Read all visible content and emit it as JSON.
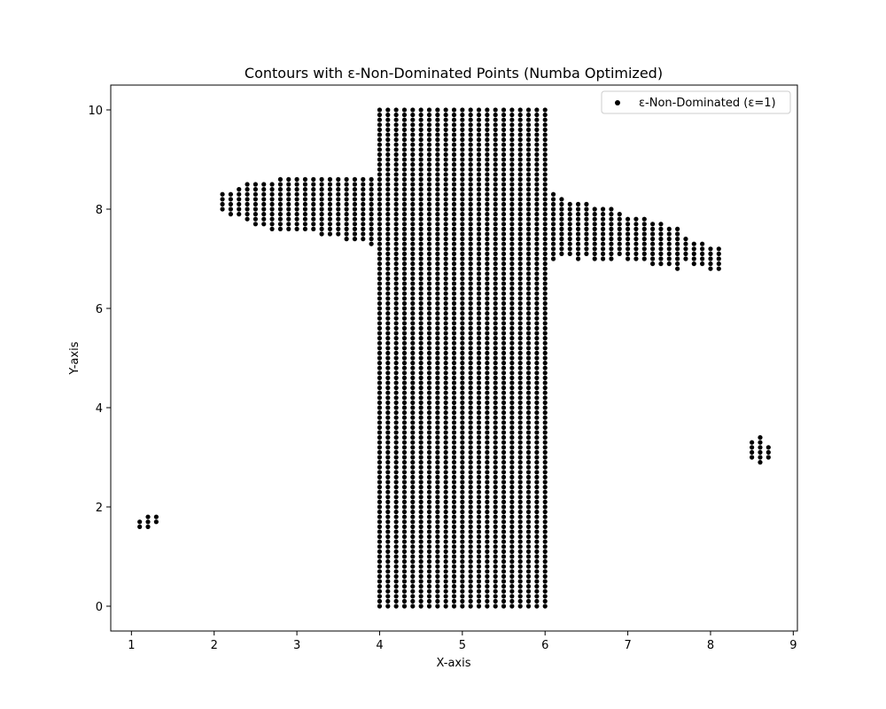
{
  "chart_data": {
    "type": "scatter",
    "title": "Contours with ε-Non-Dominated Points (Numba Optimized)",
    "xlabel": "X-axis",
    "ylabel": "Y-axis",
    "xlim": [
      0.75,
      9.05
    ],
    "ylim": [
      -0.5,
      10.5
    ],
    "xticks": [
      1,
      2,
      3,
      4,
      5,
      6,
      7,
      8,
      9
    ],
    "yticks": [
      0,
      2,
      4,
      6,
      8,
      10
    ],
    "grid": false,
    "legend_position": "upper right",
    "marker_color": "#000000",
    "series": [
      {
        "name": "ε-Non-Dominated (ε=1)",
        "regions": [
          {
            "part": "vertical-bar",
            "x_range": [
              4.0,
              6.0
            ],
            "x_step": 0.1,
            "y_range": [
              0.0,
              10.0
            ],
            "y_step": 0.1
          },
          {
            "part": "left-arm",
            "x_range": [
              2.1,
              3.9
            ],
            "x_step": 0.1,
            "y_step": 0.1,
            "columns": [
              [
                2.1,
                8.0,
                8.3
              ],
              [
                2.2,
                7.9,
                8.3
              ],
              [
                2.3,
                7.9,
                8.4
              ],
              [
                2.4,
                7.8,
                8.5
              ],
              [
                2.5,
                7.7,
                8.5
              ],
              [
                2.6,
                7.7,
                8.5
              ],
              [
                2.7,
                7.6,
                8.5
              ],
              [
                2.8,
                7.6,
                8.6
              ],
              [
                2.9,
                7.6,
                8.6
              ],
              [
                3.0,
                7.6,
                8.6
              ],
              [
                3.1,
                7.6,
                8.6
              ],
              [
                3.2,
                7.6,
                8.6
              ],
              [
                3.3,
                7.5,
                8.6
              ],
              [
                3.4,
                7.5,
                8.6
              ],
              [
                3.5,
                7.5,
                8.6
              ],
              [
                3.6,
                7.4,
                8.6
              ],
              [
                3.7,
                7.4,
                8.6
              ],
              [
                3.8,
                7.4,
                8.6
              ],
              [
                3.9,
                7.3,
                8.6
              ]
            ]
          },
          {
            "part": "right-arm",
            "x_range": [
              6.1,
              8.1
            ],
            "x_step": 0.1,
            "y_step": 0.1,
            "columns": [
              [
                6.1,
                7.0,
                8.3
              ],
              [
                6.2,
                7.1,
                8.2
              ],
              [
                6.3,
                7.1,
                8.1
              ],
              [
                6.4,
                7.0,
                8.1
              ],
              [
                6.5,
                7.1,
                8.1
              ],
              [
                6.6,
                7.0,
                8.0
              ],
              [
                6.7,
                7.0,
                8.0
              ],
              [
                6.8,
                7.0,
                8.0
              ],
              [
                6.9,
                7.1,
                7.9
              ],
              [
                7.0,
                7.0,
                7.8
              ],
              [
                7.1,
                7.0,
                7.8
              ],
              [
                7.2,
                7.0,
                7.8
              ],
              [
                7.3,
                6.9,
                7.7
              ],
              [
                7.4,
                6.9,
                7.7
              ],
              [
                7.5,
                6.9,
                7.6
              ],
              [
                7.6,
                6.8,
                7.6
              ],
              [
                7.7,
                7.0,
                7.4
              ],
              [
                7.8,
                6.9,
                7.3
              ],
              [
                7.9,
                6.9,
                7.3
              ],
              [
                8.0,
                6.8,
                7.2
              ],
              [
                8.1,
                6.8,
                7.2
              ]
            ]
          },
          {
            "part": "right-cluster",
            "x_step": 0.1,
            "y_step": 0.1,
            "columns": [
              [
                8.5,
                3.0,
                3.3
              ],
              [
                8.6,
                2.9,
                3.4
              ],
              [
                8.7,
                3.0,
                3.2
              ]
            ]
          },
          {
            "part": "left-cluster",
            "x_step": 0.1,
            "y_step": 0.1,
            "columns": [
              [
                1.1,
                1.6,
                1.7
              ],
              [
                1.2,
                1.6,
                1.8
              ],
              [
                1.3,
                1.7,
                1.8
              ]
            ]
          }
        ]
      }
    ]
  }
}
